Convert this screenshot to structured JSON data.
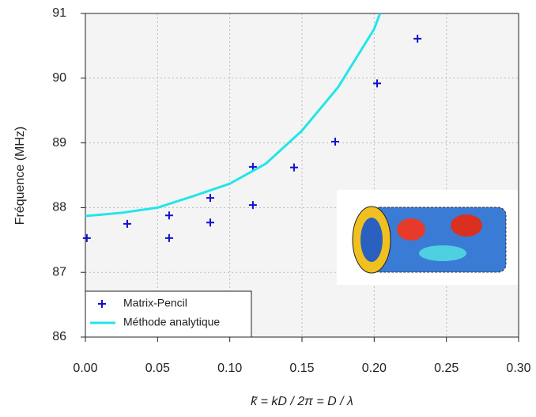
{
  "chart_data": {
    "type": "scatter",
    "x_label": "k̃ = kD / 2π = D / λ",
    "y_label": "Fréquence (MHz)",
    "xlim": [
      0,
      0.3
    ],
    "ylim": [
      86,
      91
    ],
    "xticks": [
      {
        "value": 0,
        "label": "0.00"
      },
      {
        "value": 0.05,
        "label": "0.05"
      },
      {
        "value": 0.1,
        "label": "0.10"
      },
      {
        "value": 0.15,
        "label": "0.15"
      },
      {
        "value": 0.2,
        "label": "0.20"
      },
      {
        "value": 0.25,
        "label": "0.25"
      },
      {
        "value": 0.3,
        "label": "0.30"
      }
    ],
    "yticks": [
      86,
      87,
      88,
      89,
      90,
      91
    ],
    "grid": true,
    "legend": "bottom-left",
    "series": [
      {
        "name": "Matrix-Pencil",
        "color": "#1010d0",
        "style": "points",
        "x": [
          0.001,
          0.029,
          0.058,
          0.058,
          0.0865,
          0.0865,
          0.116,
          0.116,
          0.1445,
          0.173,
          0.202,
          0.23
        ],
        "values": [
          87.53,
          87.75,
          87.53,
          87.88,
          87.77,
          88.15,
          88.04,
          88.63,
          88.62,
          89.02,
          89.92,
          90.61
        ]
      },
      {
        "name": "Méthode analytique",
        "color": "#22e5ea",
        "style": "line",
        "x": [
          0,
          0.025,
          0.05,
          0.075,
          0.1,
          0.125,
          0.15,
          0.175,
          0.2,
          0.204
        ],
        "values": [
          87.87,
          87.92,
          88.0,
          88.18,
          88.37,
          88.68,
          89.19,
          89.86,
          90.76,
          91.0
        ]
      }
    ]
  }
}
